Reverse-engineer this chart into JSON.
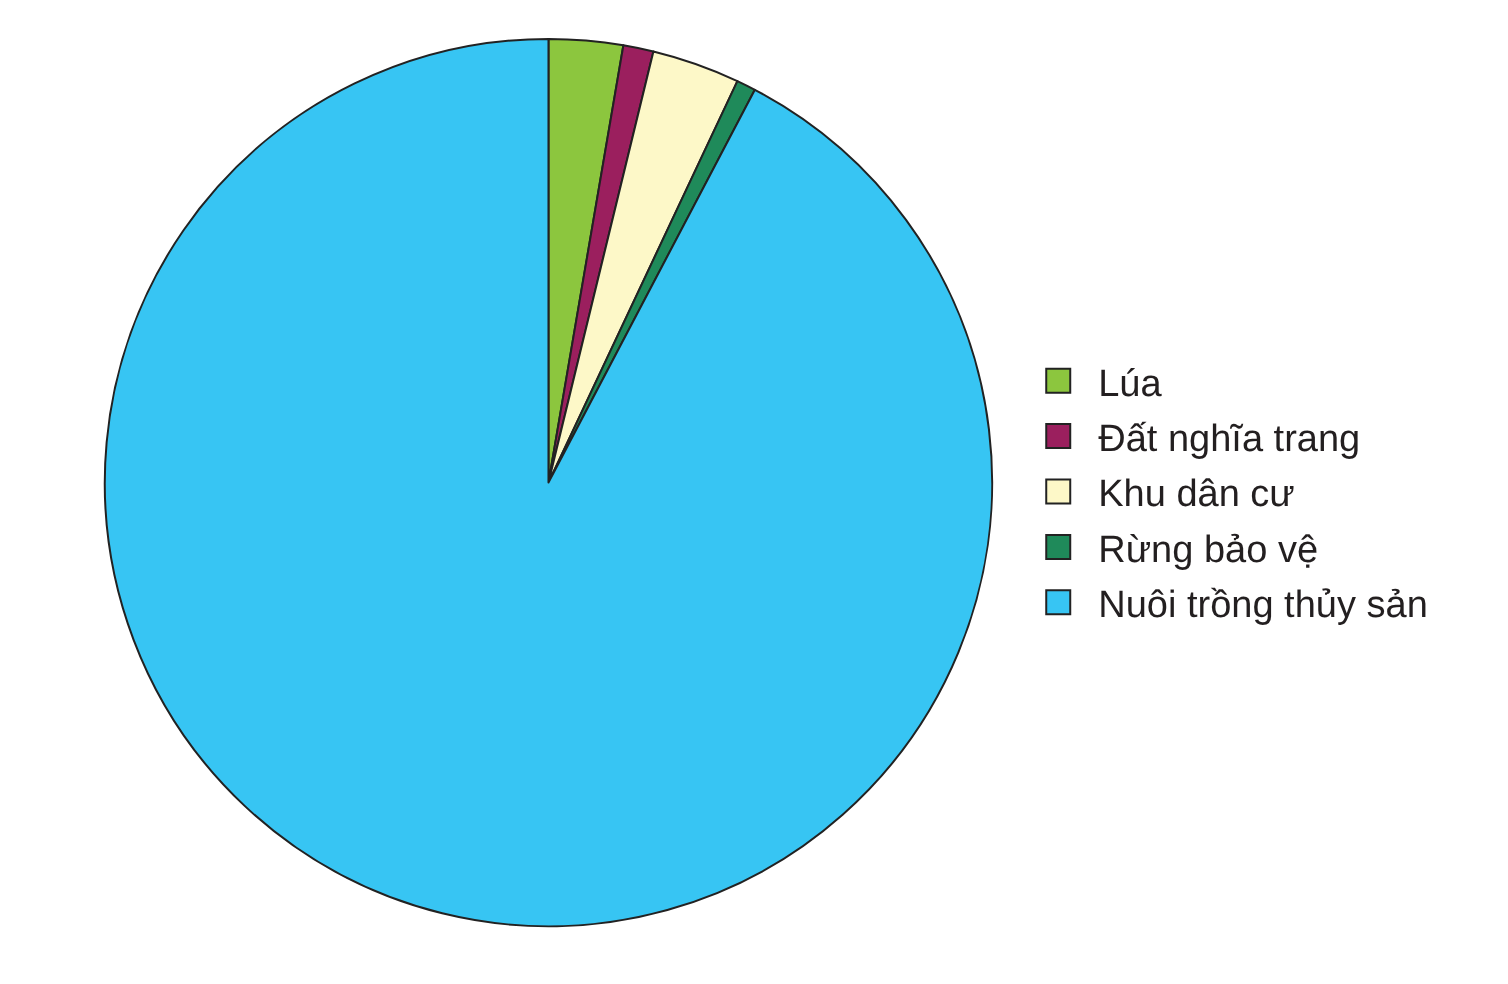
{
  "chart_data": {
    "type": "pie",
    "categories": [
      "Lúa",
      "Đất nghĩa trang",
      "Khu dân cư",
      "Rừng bảo vệ",
      "Nuôi trồng thủy sản"
    ],
    "values": [
      2.7,
      1.1,
      3.2,
      0.7,
      92.3
    ],
    "colors": [
      "#8cc63e",
      "#9b1f5e",
      "#fdf8c8",
      "#1f8a5a",
      "#37c5f3"
    ],
    "legend": "right"
  }
}
